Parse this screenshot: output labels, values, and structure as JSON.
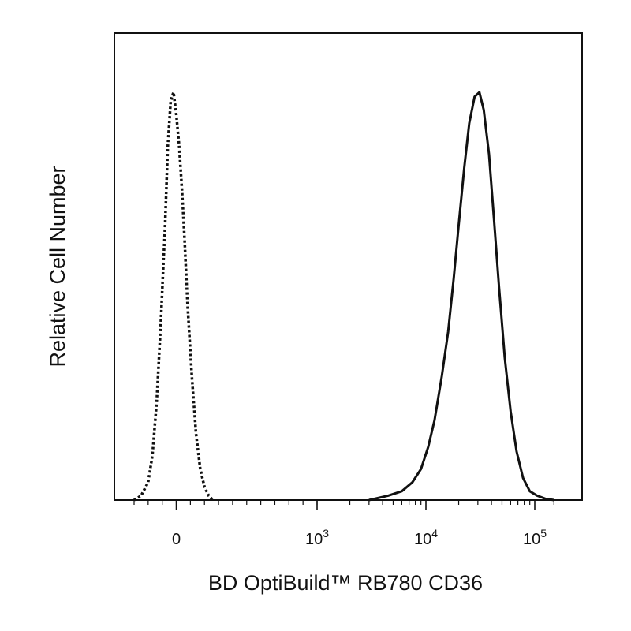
{
  "chart_data": {
    "type": "line",
    "xlabel": "BD OptiBuild™ RB780 CD36",
    "ylabel": "Relative Cell Number",
    "x_scale": "biexponential",
    "y_scale": "linear",
    "xlim": [
      -300,
      200000
    ],
    "ylim": [
      0,
      100
    ],
    "grid": false,
    "legend": "none",
    "x_ticks": [
      {
        "value": 0,
        "base": "0",
        "exp": ""
      },
      {
        "value": 1000,
        "base": "10",
        "exp": "3"
      },
      {
        "value": 10000,
        "base": "10",
        "exp": "4"
      },
      {
        "value": 100000,
        "base": "10",
        "exp": "5"
      }
    ],
    "series": [
      {
        "style": "dotted",
        "color": "#111111",
        "x": [
          -300,
          -250,
          -200,
          -170,
          -140,
          -110,
          -80,
          -60,
          -40,
          -20,
          0,
          20,
          40,
          60,
          80,
          110,
          140,
          170,
          200,
          230,
          260
        ],
        "y": [
          0,
          1,
          4,
          10,
          22,
          40,
          62,
          80,
          90,
          92,
          87,
          80,
          70,
          58,
          44,
          28,
          15,
          7,
          3,
          1,
          0
        ]
      },
      {
        "style": "solid",
        "color": "#111111",
        "x": [
          3000,
          4500,
          6000,
          7500,
          9000,
          10500,
          12000,
          14000,
          16000,
          18000,
          20000,
          22500,
          25000,
          28000,
          31000,
          34000,
          38000,
          42000,
          47000,
          53000,
          60000,
          68000,
          78000,
          90000,
          105000,
          125000,
          150000
        ],
        "y": [
          0,
          1,
          2,
          4,
          7,
          12,
          18,
          28,
          38,
          50,
          62,
          75,
          85,
          91,
          92,
          88,
          78,
          64,
          48,
          32,
          20,
          11,
          5,
          2,
          1,
          0.3,
          0
        ]
      }
    ]
  }
}
